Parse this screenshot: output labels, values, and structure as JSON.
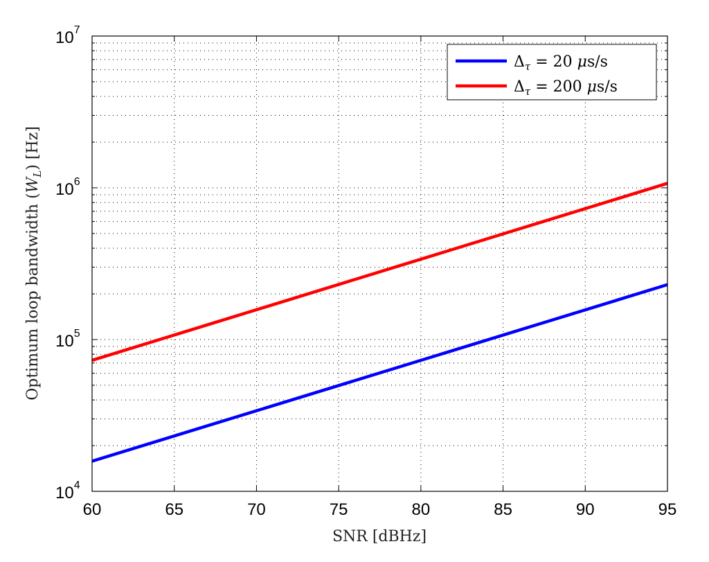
{
  "chart_data": {
    "type": "line",
    "title": "",
    "xlabel": "SNR [dBHz]",
    "ylabel": "Optimum loop bandwidth (W_L) [Hz]",
    "xlim": [
      60,
      95
    ],
    "ylim": [
      10000,
      10000000
    ],
    "yscale": "log",
    "grid": true,
    "legend_position": "top-right",
    "x_ticks": [
      60,
      65,
      70,
      75,
      80,
      85,
      90,
      95
    ],
    "y_ticks": [
      {
        "base": "10",
        "exp": "4",
        "value": 10000
      },
      {
        "base": "10",
        "exp": "5",
        "value": 100000
      },
      {
        "base": "10",
        "exp": "6",
        "value": 1000000
      },
      {
        "base": "10",
        "exp": "7",
        "value": 10000000
      }
    ],
    "series": [
      {
        "name": "Δτ = 20 μs/s",
        "name_parts": {
          "delta": "Δ",
          "sub": "τ",
          "rest": " = 20 ",
          "mu": "μ",
          "unit": "s/s"
        },
        "color": "#0000ff",
        "x": [
          60,
          95
        ],
        "y": [
          15800,
          230000
        ]
      },
      {
        "name": "Δτ = 200 μs/s",
        "name_parts": {
          "delta": "Δ",
          "sub": "τ",
          "rest": " = 200 ",
          "mu": "μ",
          "unit": "s/s"
        },
        "color": "#ff0000",
        "x": [
          60,
          95
        ],
        "y": [
          73000,
          1070000
        ]
      }
    ]
  }
}
